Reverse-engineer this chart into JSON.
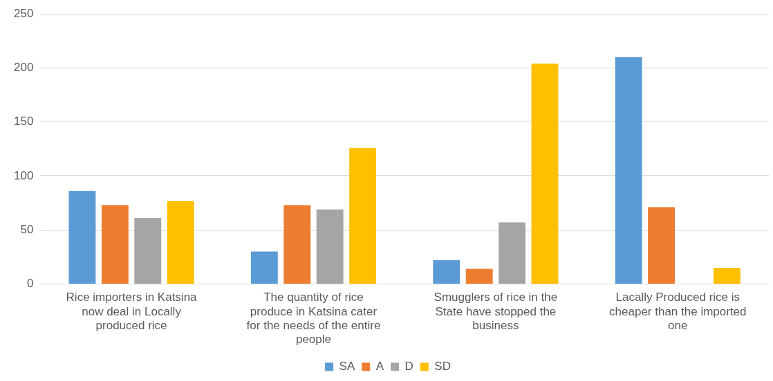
{
  "chart_data": {
    "type": "bar",
    "categories": [
      "Rice importers in Katsina now deal in Locally produced rice",
      "The quantity of rice produce in Katsina cater for the needs of the entire people",
      "Smugglers of rice in the State have stopped the business",
      "Lacally Produced rice is cheaper than the imported one"
    ],
    "series": [
      {
        "name": "SA",
        "color": "#5b9bd5",
        "values": [
          86,
          30,
          22,
          210
        ]
      },
      {
        "name": "A",
        "color": "#ed7d31",
        "values": [
          73,
          73,
          14,
          71
        ]
      },
      {
        "name": "D",
        "color": "#a5a5a5",
        "values": [
          61,
          69,
          57,
          0
        ]
      },
      {
        "name": "SD",
        "color": "#ffc000",
        "values": [
          77,
          126,
          204,
          15
        ]
      }
    ],
    "ylim": [
      0,
      250
    ],
    "yticks": [
      0,
      50,
      100,
      150,
      200,
      250
    ],
    "grid": "y",
    "legend": "bottom"
  }
}
